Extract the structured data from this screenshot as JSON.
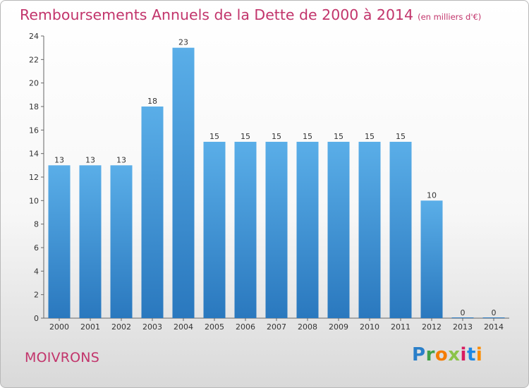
{
  "header": {
    "title": "Remboursements Annuels de la Dette de 2000 à 2014",
    "unit": "(en milliers d'€)"
  },
  "footer": {
    "commune": "MOIVRONS",
    "logo": {
      "letters": [
        {
          "ch": "P",
          "color": "#2a7fc9"
        },
        {
          "ch": "r",
          "color": "#43a047"
        },
        {
          "ch": "o",
          "color": "#f57c00"
        },
        {
          "ch": "x",
          "color": "#8bc34a"
        },
        {
          "ch": "i",
          "color": "#d81b60"
        },
        {
          "ch": "t",
          "color": "#1e88e5"
        },
        {
          "ch": "i",
          "color": "#fb8c00"
        }
      ]
    }
  },
  "chart_data": {
    "type": "bar",
    "title": "Remboursements Annuels de la Dette de 2000 à 2014",
    "unit": "(en milliers d'€)",
    "categories": [
      "2000",
      "2001",
      "2002",
      "2003",
      "2004",
      "2005",
      "2006",
      "2007",
      "2008",
      "2009",
      "2010",
      "2011",
      "2012",
      "2013",
      "2014"
    ],
    "values": [
      13,
      13,
      13,
      18,
      23,
      15,
      15,
      15,
      15,
      15,
      15,
      15,
      10,
      0,
      0
    ],
    "ylim": [
      0,
      24
    ],
    "yticks": [
      0,
      2,
      4,
      6,
      8,
      10,
      12,
      14,
      16,
      18,
      20,
      22,
      24
    ],
    "grid": false,
    "bar_color_top": "#5aaee8",
    "bar_color_bottom": "#2a78be"
  }
}
